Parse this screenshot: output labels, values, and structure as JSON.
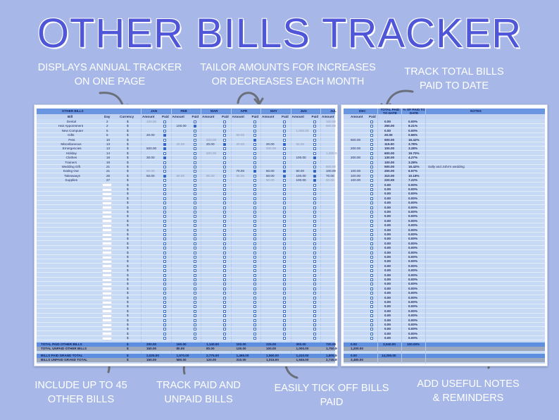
{
  "title": "OTHER BILLS TRACKER",
  "captions": {
    "annual": [
      "DISPLAYS ANNUAL TRACKER",
      "ON ONE PAGE"
    ],
    "tailor": [
      "TAILOR AMOUNTS FOR INCREASES",
      "OR DECREASES EACH MONTH"
    ],
    "total": [
      "TRACK TOTAL BILLS",
      "PAID TO DATE"
    ],
    "include": [
      "INCLUDE UP TO 45",
      "OTHER BILLS"
    ],
    "paid_unpaid": [
      "TRACK PAID AND",
      "UNPAID BILLS"
    ],
    "tick": [
      "EASILY TICK OFF BILLS",
      "PAID"
    ],
    "notes": [
      "ADD USEFUL NOTES",
      "& REMINDERS"
    ]
  },
  "sheet_left": {
    "section_header": "OTHER BILLS",
    "col_headers": {
      "bill": "Bill",
      "day": "Day",
      "currency": "Currency",
      "amount": "Amount",
      "paid": "Paid"
    },
    "months": [
      "JAN",
      "FEB",
      "MAR",
      "APR",
      "MAY",
      "JUN",
      "JUL"
    ],
    "bills": [
      {
        "name": "Dental",
        "day": "2",
        "cur": "$",
        "jan": "100.00"
      },
      {
        "name": "Hair Appointment",
        "day": "2",
        "cur": "$"
      },
      {
        "name": "New Computer",
        "day": "5",
        "cur": "$"
      },
      {
        "name": "Gifts",
        "day": "6",
        "cur": "$"
      },
      {
        "name": "Pets",
        "day": "10",
        "cur": "$"
      },
      {
        "name": "Miscellaneous",
        "day": "13",
        "cur": "$"
      },
      {
        "name": "Emergencies",
        "day": "13",
        "cur": "$"
      },
      {
        "name": "Holiday",
        "day": "14",
        "cur": "$"
      },
      {
        "name": "Clothes",
        "day": "18",
        "cur": "$"
      },
      {
        "name": "Trainers",
        "day": "19",
        "cur": "$"
      },
      {
        "name": "Wedding Gift",
        "day": "21",
        "cur": "$"
      },
      {
        "name": "Eating Out",
        "day": "21",
        "cur": "$"
      },
      {
        "name": "Takeaways",
        "day": "26",
        "cur": "$"
      },
      {
        "name": "Supplies",
        "day": "27",
        "cur": "$"
      }
    ],
    "row_amounts": [
      [
        "100.00",
        "",
        "",
        "",
        "",
        "",
        "100.00"
      ],
      [
        "",
        "100.00",
        "",
        "",
        "",
        "",
        "500.00"
      ],
      [
        "",
        "",
        "",
        "",
        "",
        "1,000.00",
        ""
      ],
      [
        "20.00",
        "",
        "",
        "50.00",
        "",
        "",
        ""
      ],
      [
        "",
        "",
        "200.00",
        "",
        "",
        "",
        ""
      ],
      [
        "",
        "20.00",
        "20.00",
        "20.00",
        "20.00",
        "50.00",
        ""
      ],
      [
        "500.00",
        "",
        "",
        "",
        "500.00",
        "",
        ""
      ],
      [
        "",
        "",
        "500.00",
        "",
        "",
        "",
        "1,000.00"
      ],
      [
        "30.00",
        "",
        "",
        "",
        "",
        "100.00",
        ""
      ],
      [
        "",
        "",
        "",
        "",
        "",
        "",
        ""
      ],
      [
        "",
        "",
        "",
        "",
        "",
        "",
        "500.00"
      ],
      [
        "50.00",
        "",
        "",
        "70.00",
        "50.00",
        "60.00",
        "100.00"
      ],
      [
        "50.00",
        "60.00",
        "80.00",
        "50.00",
        "50.00",
        "100.00",
        "70.00"
      ],
      [
        "",
        "",
        "",
        "",
        "50.00",
        "100.00",
        "60.00"
      ]
    ],
    "totals": {
      "paid_label": "TOTAL PAID OTHER BILLS",
      "unpaid_label": "TOTAL UNPAID OTHER BILLS",
      "paid_values": [
        "200.00",
        "160.00",
        "1,140.00",
        "100.00",
        "225.00",
        "300.00",
        "720.00"
      ],
      "unpaid_values": [
        "150.00",
        "80.00",
        "80.00",
        "130.00",
        "100.00",
        "1,000.00",
        "1,750.00"
      ],
      "paid_cur": "$",
      "unpaid_cur": "$"
    },
    "grand": {
      "paid_label": "BILLS PAID GRAND TOTAL",
      "unpaid_label": "BILLS UNPAID GRAND TOTAL",
      "paid_values": [
        "2,025.00",
        "1,570.00",
        "2,775.00",
        "1,465.00",
        "1,560.00",
        "1,410.00",
        "1,805.00"
      ],
      "unpaid_values": [
        "150.00",
        "580.00",
        "120.00",
        "310.00",
        "1,015.00",
        "1,945.00",
        "2,745.00"
      ],
      "paid_cur": "$",
      "unpaid_cur": "$"
    }
  },
  "sheet_right": {
    "headers": {
      "dec": "DEC",
      "total_paid": "TOTAL PAID TO DATE",
      "pct_paid": "% OF PAID TO DATE",
      "notes": "NOTES",
      "amount": "Amount",
      "paid": "Paid"
    },
    "rows": [
      {
        "amt": "",
        "total": "0.00",
        "pct": "0.00%"
      },
      {
        "amt": "",
        "total": "250.00",
        "pct": "8.21%"
      },
      {
        "amt": "",
        "total": "0.00",
        "pct": "0.00%"
      },
      {
        "amt": "",
        "total": "20.00",
        "pct": "0.66%"
      },
      {
        "amt": "500.00",
        "total": "500.00",
        "pct": "16.42%"
      },
      {
        "amt": "",
        "total": "115.00",
        "pct": "3.78%"
      },
      {
        "amt": "200.00",
        "total": "100.00",
        "pct": "3.28%"
      },
      {
        "amt": "",
        "total": "600.00",
        "pct": "19.70%"
      },
      {
        "amt": "200.00",
        "total": "130.00",
        "pct": "4.27%"
      },
      {
        "amt": "",
        "total": "100.00",
        "pct": "3.28%"
      },
      {
        "amt": "",
        "total": "500.00",
        "pct": "16.42%",
        "note": "Sally and John's wedding"
      },
      {
        "amt": "100.00",
        "total": "200.00",
        "pct": "6.57%"
      },
      {
        "amt": "100.00",
        "total": "310.00",
        "pct": "10.18%"
      },
      {
        "amt": "100.00",
        "total": "220.00",
        "pct": "7.22%"
      }
    ],
    "blank_total": "0.00",
    "blank_pct": "0.00%",
    "totals": {
      "dec_paid": "0.00",
      "dec_unpaid": "1,200.00",
      "total_paid": "3,040.00",
      "pct_paid": "100.00%",
      "grand_dec_paid": "0.00",
      "grand_dec_unpaid": "3,480.00",
      "grand_total": "14,255.00"
    }
  },
  "colors": {
    "background": "#a7b8e8",
    "title": "#5056d8",
    "header": "#6a95e0",
    "grid": "#c6d9f5"
  }
}
